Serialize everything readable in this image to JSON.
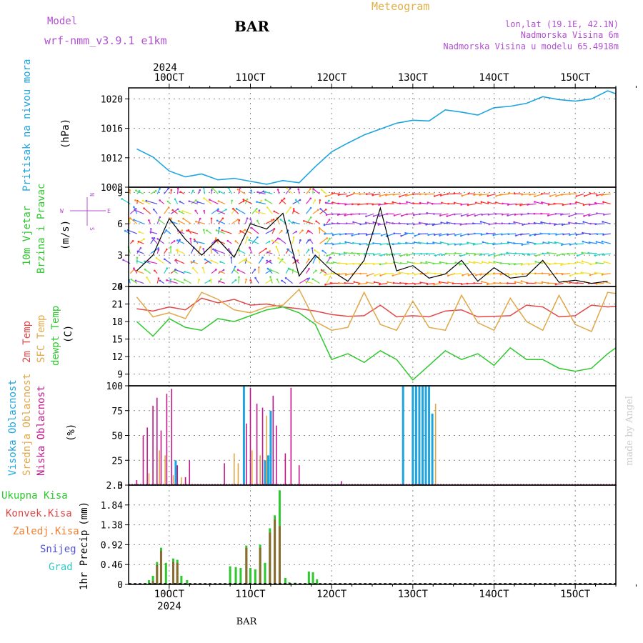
{
  "header": {
    "model_label": "Model",
    "model_name": "wrf-nmm_v3.9.1 e1km",
    "station": "BAR",
    "meteogram": "Meteogram",
    "coords": "lon,lat (19.1E, 42.1N)",
    "altitude": "Nadmorska Visina 6m",
    "model_altitude": "Nadmorska Visina u modelu 65.4918m"
  },
  "footer": {
    "station": "BAR",
    "watermark": "made by Angel"
  },
  "colors": {
    "pressure": "#1ea5e0",
    "temp2m": "#e04848",
    "sfc_temp": "#e0a848",
    "dewpt": "#2ec82e",
    "high_cloud": "#1ea5e0",
    "mid_cloud": "#e0a848",
    "low_cloud": "#c0188a",
    "total_precip": "#2ec82e",
    "conv_precip": "#e04848",
    "frz_precip": "#f08030",
    "snow": "#5050e0",
    "hail": "#30c8c8",
    "model_text": "#b050d0"
  },
  "time_axis": {
    "top_year": "2024",
    "bottom_year": "2024",
    "labels": [
      "10OCT",
      "11OCT",
      "12OCT",
      "13OCT",
      "14OCT",
      "15OCT"
    ]
  },
  "chart_data": [
    {
      "id": "pressure",
      "type": "line",
      "ylabel_title": "Pritisak na nivou mora",
      "ylabel_unit": "(hPa)",
      "yticks": [
        "1008",
        "1012",
        "1016",
        "1020"
      ],
      "ylim": [
        1008,
        1021.5
      ],
      "x_days": [
        9.6,
        9.8,
        10.0,
        10.2,
        10.4,
        10.6,
        10.8,
        11.0,
        11.2,
        11.4,
        11.6,
        11.8,
        12.0,
        12.2,
        12.4,
        12.6,
        12.8,
        13.0,
        13.2,
        13.4,
        13.6,
        13.8,
        14.0,
        14.2,
        14.4,
        14.6,
        14.8,
        15.0,
        15.2,
        15.4,
        15.5
      ],
      "values": [
        1013.2,
        1012.1,
        1010.2,
        1009.4,
        1009.8,
        1009.0,
        1009.2,
        1008.8,
        1008.4,
        1008.9,
        1008.6,
        1010.8,
        1012.8,
        1014.0,
        1015.1,
        1015.9,
        1016.7,
        1017.1,
        1017.0,
        1018.5,
        1018.2,
        1017.8,
        1018.8,
        1019.0,
        1019.4,
        1020.3,
        1019.9,
        1019.7,
        1020.0,
        1021.1,
        1020.7
      ]
    },
    {
      "id": "wind",
      "type": "scatter",
      "ylabel_title": "10m Vjetar Brzina i Pravac",
      "ylabel_unit": "(m/s)",
      "yticks": [
        "0",
        "3",
        "6",
        "9"
      ],
      "ylim": [
        0,
        9.5
      ],
      "compass_n": "N",
      "compass_w": "W",
      "compass_e": "E",
      "compass_s": "S",
      "x_days": [
        9.6,
        9.8,
        10.0,
        10.2,
        10.4,
        10.6,
        10.8,
        11.0,
        11.2,
        11.4,
        11.6,
        11.8,
        12.0,
        12.2,
        12.4,
        12.6,
        12.8,
        13.0,
        13.2,
        13.4,
        13.6,
        13.8,
        14.0,
        14.2,
        14.4,
        14.6,
        14.8,
        15.0,
        15.2,
        15.4
      ],
      "values": [
        1.5,
        3.0,
        6.5,
        4.5,
        3.0,
        4.5,
        2.8,
        6.0,
        5.5,
        7.0,
        1.0,
        3.0,
        1.5,
        0.5,
        2.5,
        7.5,
        1.5,
        2.0,
        0.8,
        1.2,
        2.5,
        0.5,
        1.8,
        0.8,
        1.0,
        2.5,
        0.4,
        0.6,
        0.3,
        0.5
      ]
    },
    {
      "id": "temperature",
      "type": "line",
      "ylabel_temp2m": "2m Temp",
      "ylabel_sfc": "SFC Temp",
      "ylabel_dewpt": "dewpt Temp",
      "ylabel_unit": "(C)",
      "yticks": [
        "9",
        "12",
        "15",
        "18",
        "21",
        "24"
      ],
      "ylim": [
        7,
        24
      ],
      "x_days": [
        9.6,
        9.8,
        10.0,
        10.2,
        10.4,
        10.6,
        10.8,
        11.0,
        11.2,
        11.4,
        11.6,
        11.8,
        12.0,
        12.2,
        12.4,
        12.6,
        12.8,
        13.0,
        13.2,
        13.4,
        13.6,
        13.8,
        14.0,
        14.2,
        14.4,
        14.6,
        14.8,
        15.0,
        15.2,
        15.4,
        15.5
      ],
      "series": [
        {
          "key": "temp2m",
          "values": [
            20.2,
            19.8,
            20.5,
            20.0,
            22.0,
            21.2,
            21.8,
            20.8,
            21.0,
            20.5,
            20.2,
            19.8,
            19.2,
            18.9,
            19.0,
            20.8,
            18.8,
            19.0,
            18.8,
            19.8,
            20.0,
            18.8,
            18.9,
            19.0,
            20.8,
            20.5,
            18.8,
            19.0,
            20.8,
            20.5,
            20.6
          ]
        },
        {
          "key": "sfc_temp",
          "values": [
            22.2,
            18.8,
            19.5,
            18.5,
            23.0,
            21.8,
            20.0,
            19.5,
            20.5,
            20.8,
            23.5,
            18.0,
            16.5,
            17.0,
            23.0,
            17.5,
            16.5,
            21.5,
            17.0,
            16.5,
            22.5,
            17.8,
            16.5,
            22.0,
            18.0,
            16.5,
            22.5,
            17.5,
            16.3,
            23.0,
            22.8
          ]
        },
        {
          "key": "dewpt",
          "values": [
            18.0,
            15.5,
            18.5,
            17.0,
            16.5,
            18.5,
            18.0,
            19.0,
            20.0,
            20.5,
            19.5,
            17.5,
            11.5,
            12.5,
            11.0,
            13.0,
            11.5,
            8.0,
            10.5,
            13.0,
            11.5,
            12.5,
            10.5,
            13.5,
            11.5,
            11.5,
            10.0,
            9.5,
            10.0,
            12.5,
            13.5
          ]
        }
      ]
    },
    {
      "id": "clouds",
      "type": "bar",
      "ylabel_high": "Visoka Oblacnost",
      "ylabel_mid": "Srednja Oblacnost",
      "ylabel_low": "Niska Oblacnost",
      "ylabel_unit": "(%)",
      "yticks": [
        "0",
        "25",
        "50",
        "75",
        "100"
      ],
      "ylim": [
        0,
        100
      ],
      "series": [
        {
          "key": "high_cloud",
          "x_days": [
            10.08,
            10.92,
            11.18,
            11.22,
            11.25,
            12.88,
            13.0,
            13.04,
            13.08,
            13.12,
            13.16,
            13.2,
            13.24
          ],
          "values": [
            25,
            100,
            25,
            30,
            75,
            100,
            100,
            100,
            100,
            100,
            100,
            100,
            72
          ]
        },
        {
          "key": "mid_cloud",
          "x_days": [
            9.75,
            9.88,
            9.95,
            10.05,
            10.15,
            10.8,
            10.85,
            11.02,
            11.12,
            11.2,
            13.28
          ],
          "values": [
            12,
            35,
            30,
            10,
            8,
            32,
            22,
            35,
            30,
            70,
            82
          ]
        },
        {
          "key": "low_cloud",
          "x_days": [
            9.6,
            9.68,
            9.73,
            9.8,
            9.85,
            9.9,
            9.97,
            10.03,
            10.1,
            10.2,
            10.25,
            10.68,
            10.95,
            11.0,
            11.08,
            11.15,
            11.28,
            11.32,
            11.43,
            11.5,
            11.6,
            12.12
          ],
          "values": [
            5,
            50,
            58,
            80,
            88,
            55,
            92,
            97,
            20,
            8,
            25,
            22,
            62,
            98,
            82,
            78,
            90,
            60,
            32,
            98,
            20,
            4
          ]
        }
      ]
    },
    {
      "id": "precip",
      "type": "bar",
      "ylabel_title": "1hr Precip",
      "ylabel_unit": "(mm)",
      "yticks": [
        "0",
        "0.46",
        "0.92",
        "1.38",
        "1.84",
        "2.3"
      ],
      "ylim": [
        0,
        2.3
      ],
      "legend": {
        "total": "Ukupna Kisa",
        "conv": "Konvek.Kisa",
        "frz": "Zaledj.Kisa",
        "snow": "Snijeg",
        "hail": "Grad"
      },
      "series": [
        {
          "key": "total_precip",
          "x_days": [
            9.75,
            9.8,
            9.85,
            9.9,
            9.96,
            10.05,
            10.1,
            10.15,
            10.22,
            10.75,
            10.82,
            10.88,
            10.95,
            11.0,
            11.06,
            11.12,
            11.18,
            11.24,
            11.3,
            11.36,
            11.43,
            11.48,
            11.55,
            11.72,
            11.77,
            11.82
          ],
          "values": [
            0.1,
            0.2,
            0.52,
            0.85,
            0.5,
            0.6,
            0.57,
            0.2,
            0.1,
            0.42,
            0.4,
            0.38,
            0.9,
            0.38,
            0.35,
            0.92,
            0.5,
            1.3,
            1.6,
            2.18,
            0.15,
            0.05,
            0.04,
            0.3,
            0.28,
            0.12
          ]
        },
        {
          "key": "conv_precip",
          "x_days": [
            9.8,
            9.85,
            9.9,
            10.05,
            10.1,
            10.95,
            11.12,
            11.24,
            11.3,
            11.36
          ],
          "values": [
            0.08,
            0.45,
            0.78,
            0.52,
            0.5,
            0.85,
            0.85,
            1.2,
            1.5,
            1.35
          ]
        }
      ]
    }
  ]
}
